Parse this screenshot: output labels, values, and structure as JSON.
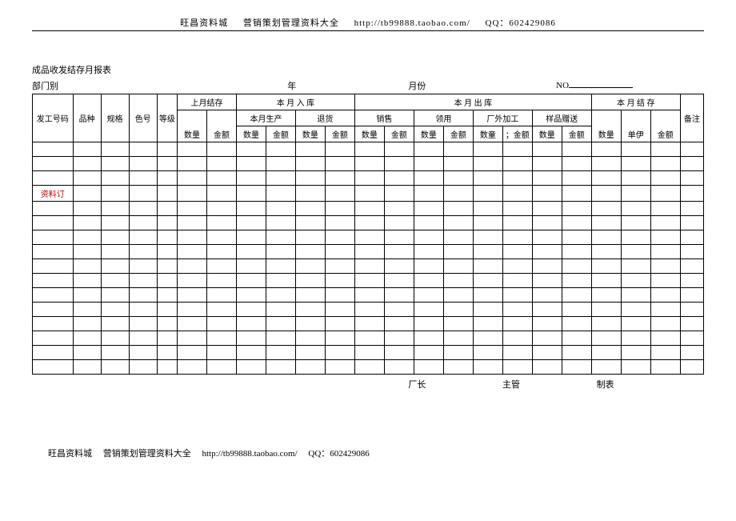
{
  "header": {
    "site": "旺昌资料城",
    "subtitle": "营销策划管理资料大全",
    "url": "http://tb99888.taobao.com/",
    "qq_label": "QQ：",
    "qq": "602429086"
  },
  "title": "成品收发结存月报表",
  "meta": {
    "dept_label": "部门别",
    "year_label": "年",
    "month_label": "月份",
    "no_label": "NO"
  },
  "cols": {
    "code": "发工号码",
    "kind": "品种",
    "spec": "规格",
    "color": "色号",
    "grade": "等级",
    "last_stock": "上月结存",
    "in_month": "本 月 入 库",
    "out_month": "本 月 出 库",
    "end_stock": "本 月 结 存",
    "note": "备注",
    "prod": "本月生产",
    "return": "退货",
    "sale": "销售",
    "take": "领用",
    "outproc": "厂外加工",
    "sample": "样品赠送",
    "qty": "数量",
    "amt": "金额",
    "qty2": "数童",
    "amt_sep": "；金额",
    "unit": "单伊"
  },
  "watermark": "资料订",
  "sign": {
    "mgr": "厂长",
    "sup": "主管",
    "maker": "制表"
  },
  "rows": 16,
  "colors": {
    "border": "#000000",
    "bg": "#ffffff",
    "text": "#000000",
    "watermark": "#c00000"
  },
  "typography": {
    "body_fontsize": 11,
    "cell_fontsize": 10
  }
}
